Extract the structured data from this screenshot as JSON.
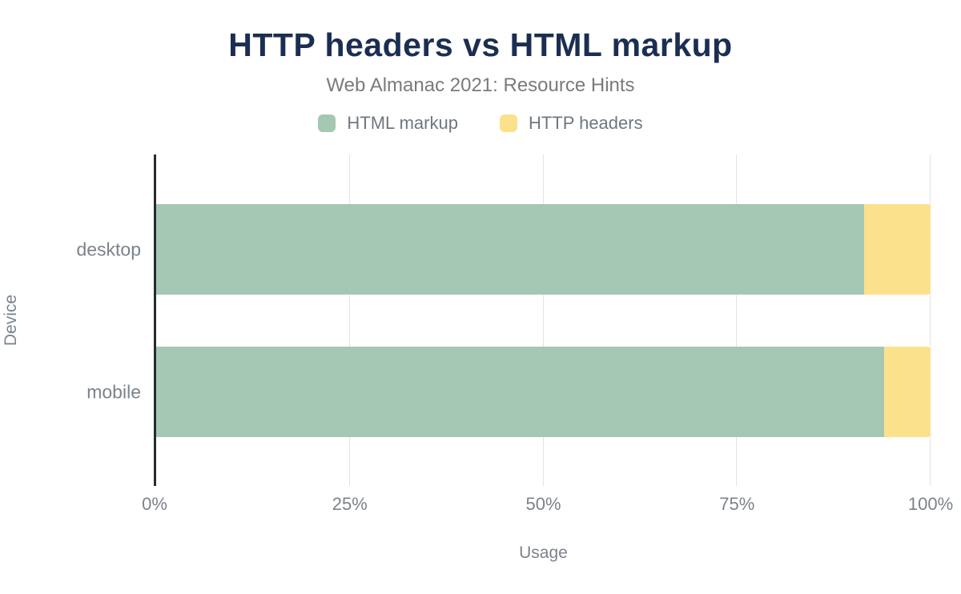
{
  "chart_data": {
    "type": "bar",
    "orientation": "horizontal",
    "stacked": true,
    "title": "HTTP headers vs HTML markup",
    "subtitle": "Web Almanac 2021: Resource Hints",
    "xlabel": "Usage",
    "ylabel": "Device",
    "categories": [
      "desktop",
      "mobile"
    ],
    "series": [
      {
        "name": "HTML markup",
        "color": "#a4c8b3",
        "values": [
          91.4,
          94.0
        ]
      },
      {
        "name": "HTTP headers",
        "color": "#fce18d",
        "values": [
          8.6,
          6.0
        ]
      }
    ],
    "xlim": [
      0,
      100
    ],
    "x_tick_labels": [
      "0%",
      "25%",
      "50%",
      "75%",
      "100%"
    ],
    "grid": "vertical",
    "legend_position": "top",
    "colors": {
      "title": "#1b2e52",
      "subtitle": "#7a7a7a",
      "axis_text": "#7b838c",
      "axis_line": "#262a33",
      "gridline": "#e4e4e4"
    }
  }
}
